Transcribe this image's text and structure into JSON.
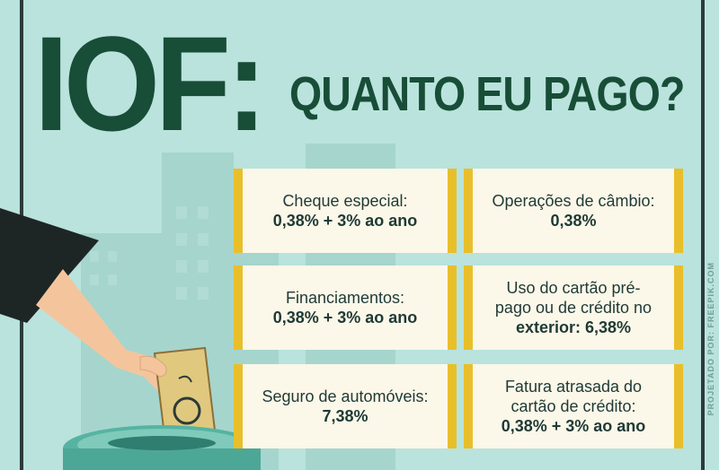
{
  "title": {
    "main": "IOF:",
    "sub": "QUANTO EU PAGO?"
  },
  "cards": [
    {
      "desc": "Cheque especial:",
      "rate": "0,38% + 3% ao ano"
    },
    {
      "desc": "Operações de câmbio:",
      "rate": "0,38%"
    },
    {
      "desc": "Financiamentos:",
      "rate": "0,38% + 3% ao ano"
    },
    {
      "desc": "Uso do cartão pré-pago ou de crédito no",
      "rate": "exterior: 6,38%"
    },
    {
      "desc": "Seguro de automóveis:",
      "rate": "7,38%"
    },
    {
      "desc": "Fatura atrasada do cartão de crédito:",
      "rate": "0,38% + 3% ao ano"
    }
  ],
  "credit": "PROJETADO POR: FREEPIK.COM",
  "colors": {
    "background": "#b9e3dc",
    "title": "#184d37",
    "card": "#fbf7e9",
    "card_accent": "#e8bf2a"
  },
  "icons": [
    "hand-icon",
    "banknote-icon",
    "piggy-jar-icon",
    "buildings-illustration"
  ]
}
